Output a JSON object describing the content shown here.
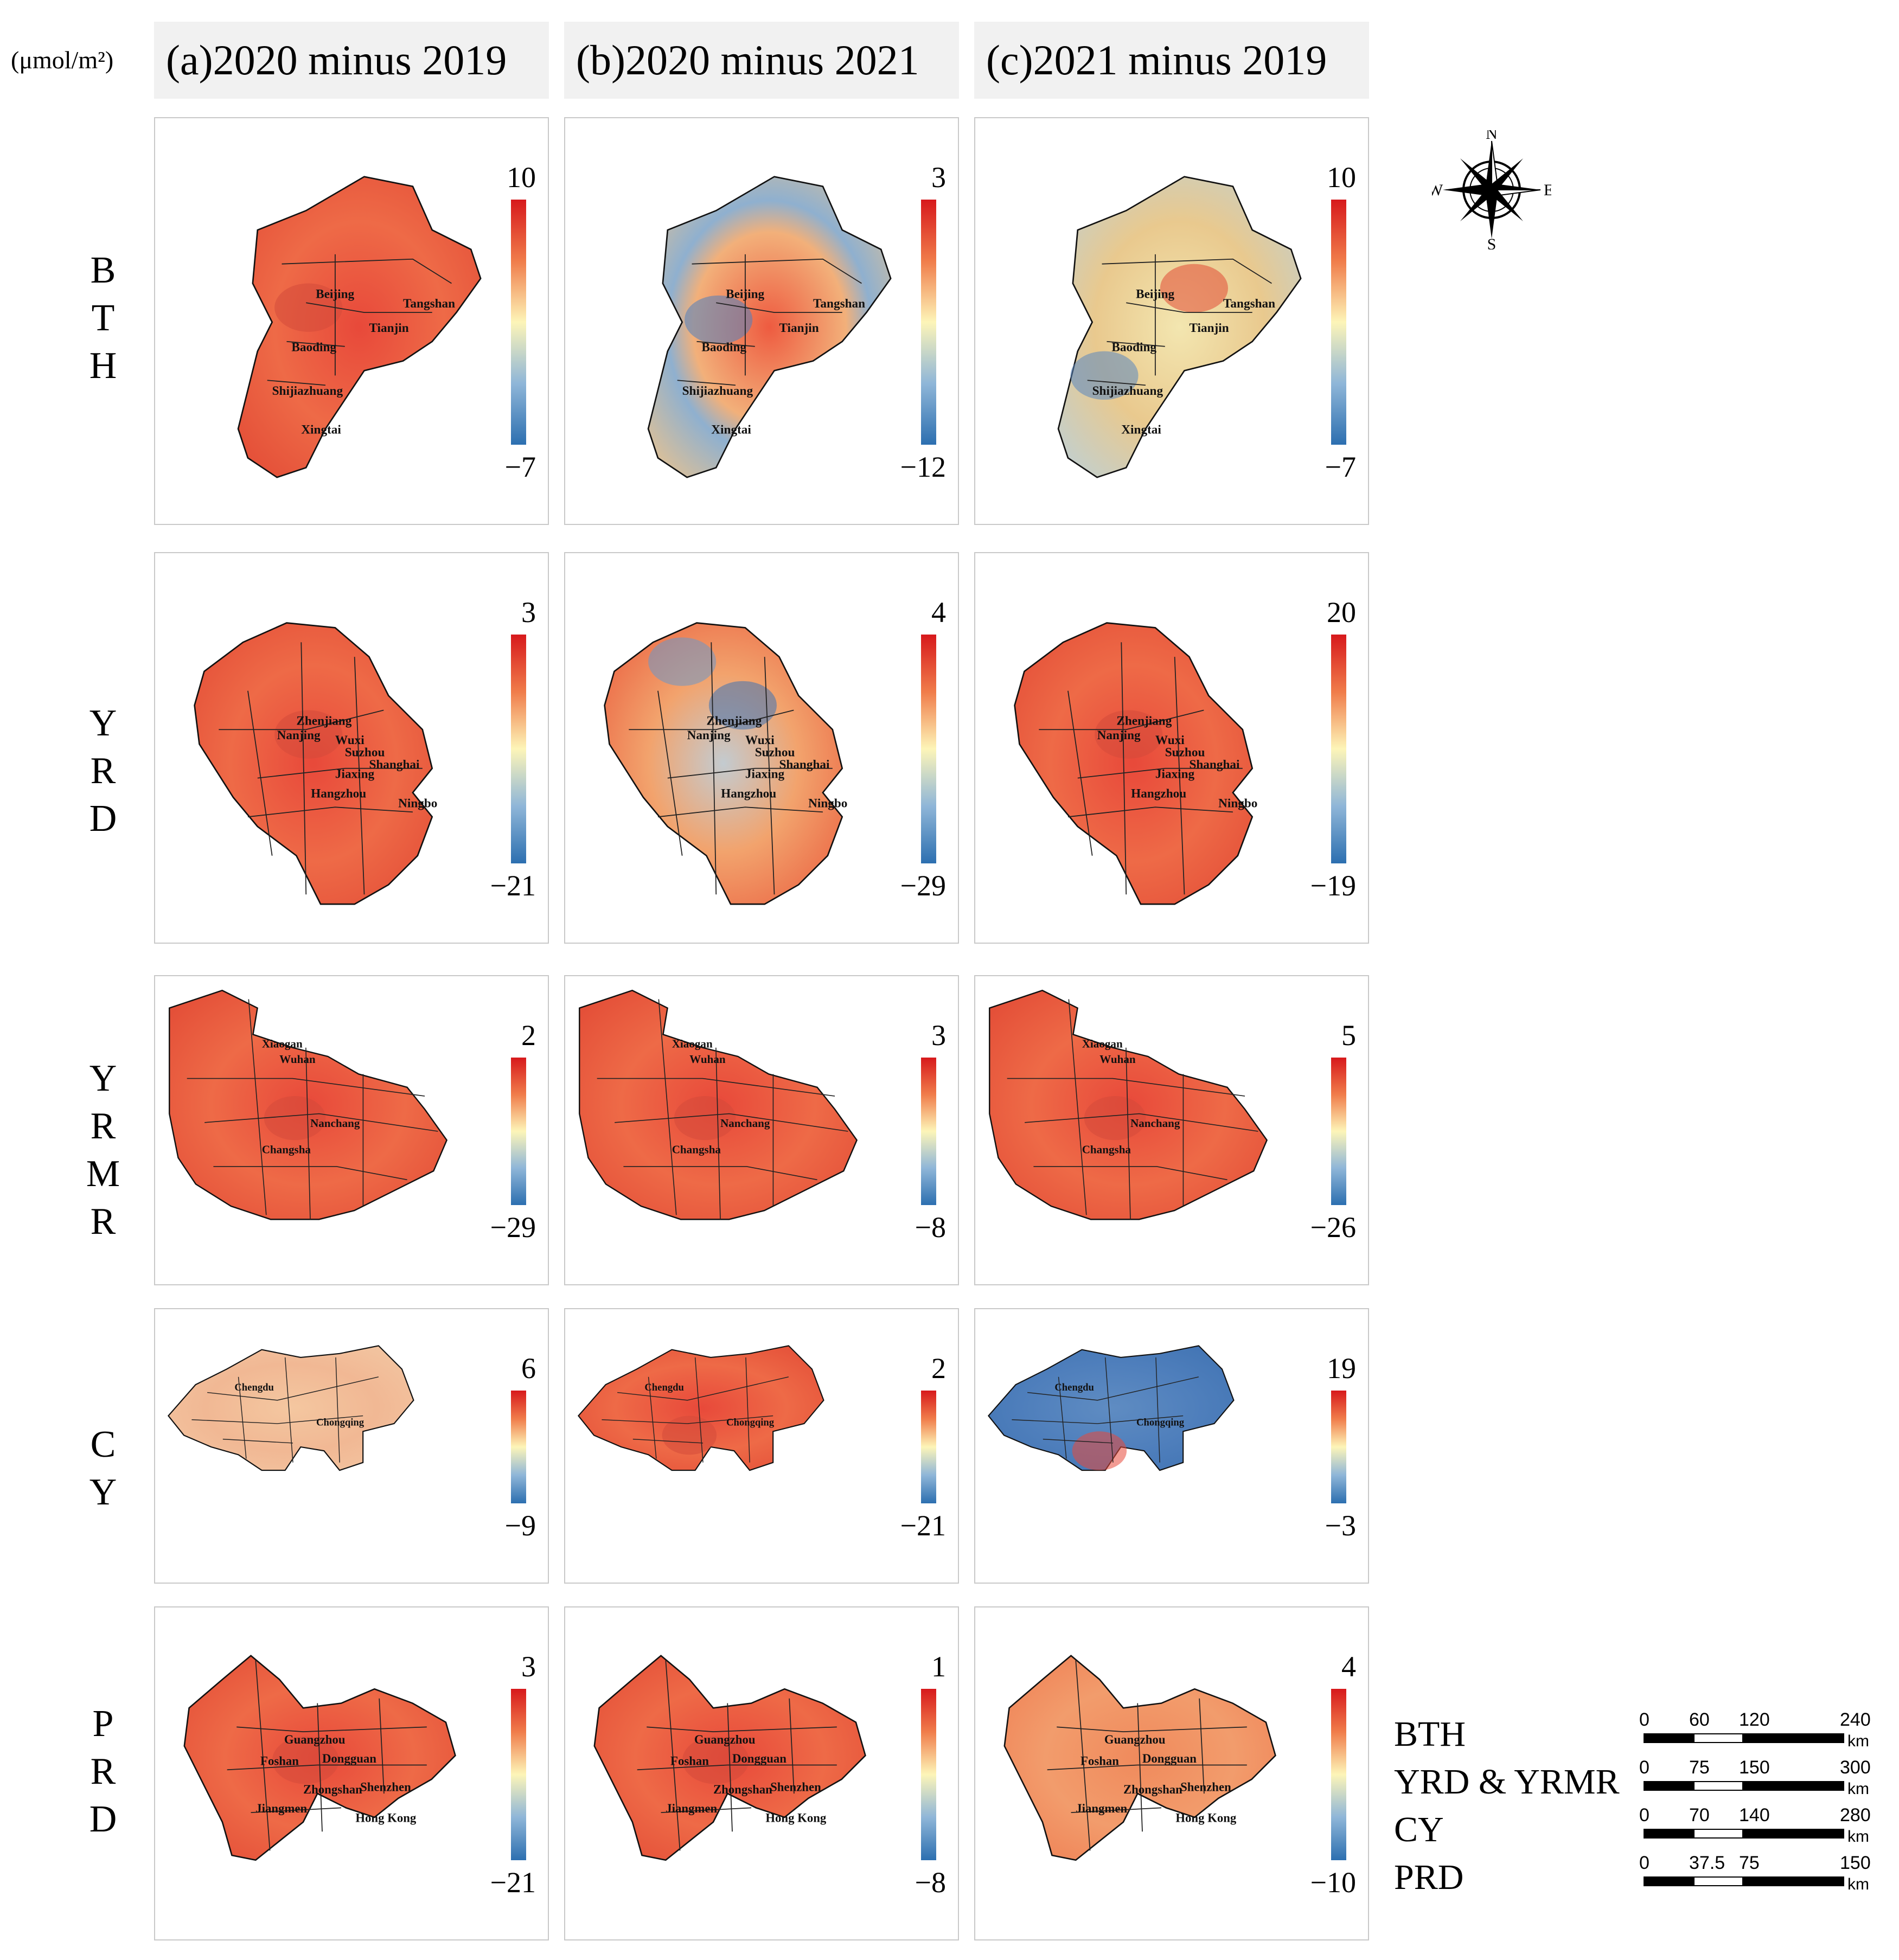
{
  "unit_label": "(μmol/m²)",
  "columns": [
    {
      "label": "(a)2020 minus 2019"
    },
    {
      "label": "(b)2020 minus 2021"
    },
    {
      "label": "(c)2021 minus 2019"
    }
  ],
  "rows": [
    {
      "label": "BTH",
      "letters": [
        "B",
        "T",
        "H"
      ]
    },
    {
      "label": "YRD",
      "letters": [
        "Y",
        "R",
        "D"
      ]
    },
    {
      "label": "YRMR",
      "letters": [
        "Y",
        "R",
        "M",
        "R"
      ]
    },
    {
      "label": "CY",
      "letters": [
        "C",
        "Y"
      ]
    },
    {
      "label": "PRD",
      "letters": [
        "P",
        "R",
        "D"
      ]
    }
  ],
  "colorbars": [
    [
      {
        "max": "10",
        "min": "−7"
      },
      {
        "max": "3",
        "min": "−12"
      },
      {
        "max": "10",
        "min": "−7"
      }
    ],
    [
      {
        "max": "3",
        "min": "−21"
      },
      {
        "max": "4",
        "min": "−29"
      },
      {
        "max": "20",
        "min": "−19"
      }
    ],
    [
      {
        "max": "2",
        "min": "−29"
      },
      {
        "max": "3",
        "min": "−8"
      },
      {
        "max": "5",
        "min": "−26"
      }
    ],
    [
      {
        "max": "6",
        "min": "−9"
      },
      {
        "max": "2",
        "min": "−21"
      },
      {
        "max": "19",
        "min": "−3"
      }
    ],
    [
      {
        "max": "3",
        "min": "−21"
      },
      {
        "max": "1",
        "min": "−8"
      },
      {
        "max": "4",
        "min": "−10"
      }
    ]
  ],
  "cities": {
    "BTH": [
      "Beijing",
      "Tangshan",
      "Tianjin",
      "Baoding",
      "Shijiazhuang",
      "Xingtai"
    ],
    "YRD": [
      "Zhenjiang",
      "Nanjing",
      "Wuxi",
      "Suzhou",
      "Shanghai",
      "Jiaxing",
      "Hangzhou",
      "Ningbo"
    ],
    "YRMR": [
      "Xiaogan",
      "Wuhan",
      "Nanchang",
      "Changsha"
    ],
    "CY": [
      "Chengdu",
      "Chongqing"
    ],
    "PRD": [
      "Guangzhou",
      "Foshan",
      "Dongguan",
      "Zhongshan",
      "Shenzhen",
      "Jiangmen",
      "Hong Kong"
    ]
  },
  "compass": {
    "n": "N",
    "s": "S",
    "e": "E",
    "w": "W"
  },
  "scale_bars": [
    {
      "region": "BTH",
      "ticks": [
        "0",
        "60",
        "120",
        "240"
      ],
      "unit": "km"
    },
    {
      "region": "YRD & YRMR",
      "ticks": [
        "0",
        "75",
        "150",
        "300"
      ],
      "unit": "km"
    },
    {
      "region": "CY",
      "ticks": [
        "0",
        "70",
        "140",
        "280"
      ],
      "unit": "km"
    },
    {
      "region": "PRD",
      "ticks": [
        "0",
        "37.5",
        "75",
        "150"
      ],
      "unit": "km"
    }
  ],
  "colors": {
    "high": "#d7191c",
    "mid": "#fdf5b8",
    "low": "#2c6fb0",
    "header_bg": "#f1f1f1"
  },
  "panel_fill": [
    [
      "red",
      "red-blue-center",
      "yellow-red-east"
    ],
    [
      "red",
      "mixed-blue-north",
      "red"
    ],
    [
      "red",
      "red",
      "red"
    ],
    [
      "light",
      "red",
      "blue"
    ],
    [
      "red",
      "red",
      "light-red"
    ]
  ]
}
